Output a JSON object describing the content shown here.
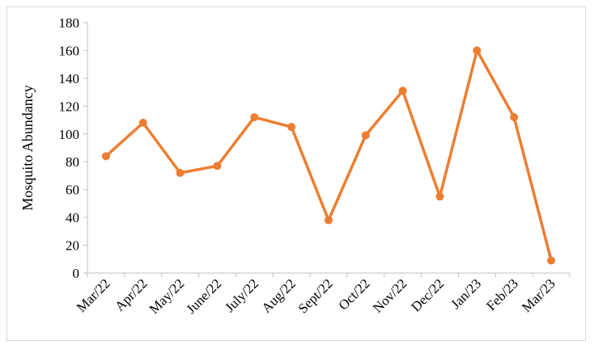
{
  "chart_data": {
    "type": "line",
    "title": "",
    "xlabel": "",
    "ylabel": "Mosquito Abundancy",
    "categories": [
      "Mar/22",
      "Apr/22",
      "May/22",
      "June/22",
      "July/22",
      "Aug/22",
      "Sept/22",
      "Oct/22",
      "Nov/22",
      "Dec/22",
      "Jan/23",
      "Feb/23",
      "Mar/23"
    ],
    "series": [
      {
        "values": [
          84,
          108,
          72,
          77,
          112,
          105,
          38,
          99,
          131,
          55,
          160,
          112,
          9
        ]
      }
    ],
    "ylim": [
      0,
      180
    ],
    "yticks": [
      0,
      20,
      40,
      60,
      80,
      100,
      120,
      140,
      160,
      180
    ],
    "grid": false,
    "legend": "none",
    "color": "#ED7D31"
  }
}
